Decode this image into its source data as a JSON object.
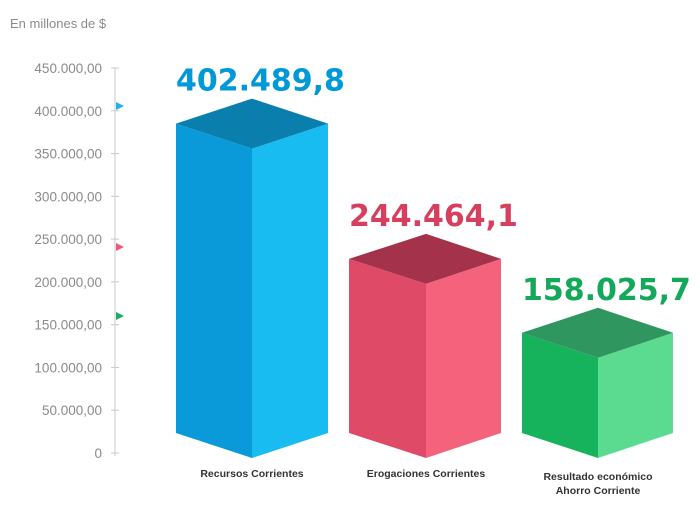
{
  "chart_data": {
    "type": "bar",
    "unit_label": "En millones de $",
    "categories": [
      [
        "Recursos Corrientes"
      ],
      [
        "Erogaciones Corrientes"
      ],
      [
        "Resultado económico",
        "Ahorro Corriente"
      ]
    ],
    "values": [
      402489.8,
      244464.1,
      158025.7
    ],
    "value_labels": [
      "402.489,8",
      "244.464,1",
      "158.025,7"
    ],
    "ylim": [
      0,
      450000
    ],
    "yticks": [
      0,
      50000,
      100000,
      150000,
      200000,
      250000,
      300000,
      350000,
      400000,
      450000
    ],
    "ytick_labels": [
      "0",
      "50.000,00",
      "100.000,00",
      "150.000,00",
      "200.000,00",
      "250.000,00",
      "300.000,00",
      "350.000,00",
      "400.000,00",
      "450.000,00"
    ],
    "grid": false,
    "colors": [
      {
        "label": "#0099d8",
        "front": "#0a9ad9",
        "side": "#18bcf0",
        "top": "#0a7fae",
        "marker": "#1ab3ee"
      },
      {
        "label": "#d6405e",
        "front": "#df4a67",
        "side": "#f5627c",
        "top": "#a3324a",
        "marker": "#ee5a77"
      },
      {
        "label": "#14a85a",
        "front": "#16b25c",
        "side": "#5bdb8f",
        "top": "#2f9660",
        "marker": "#1aae5f"
      }
    ]
  }
}
